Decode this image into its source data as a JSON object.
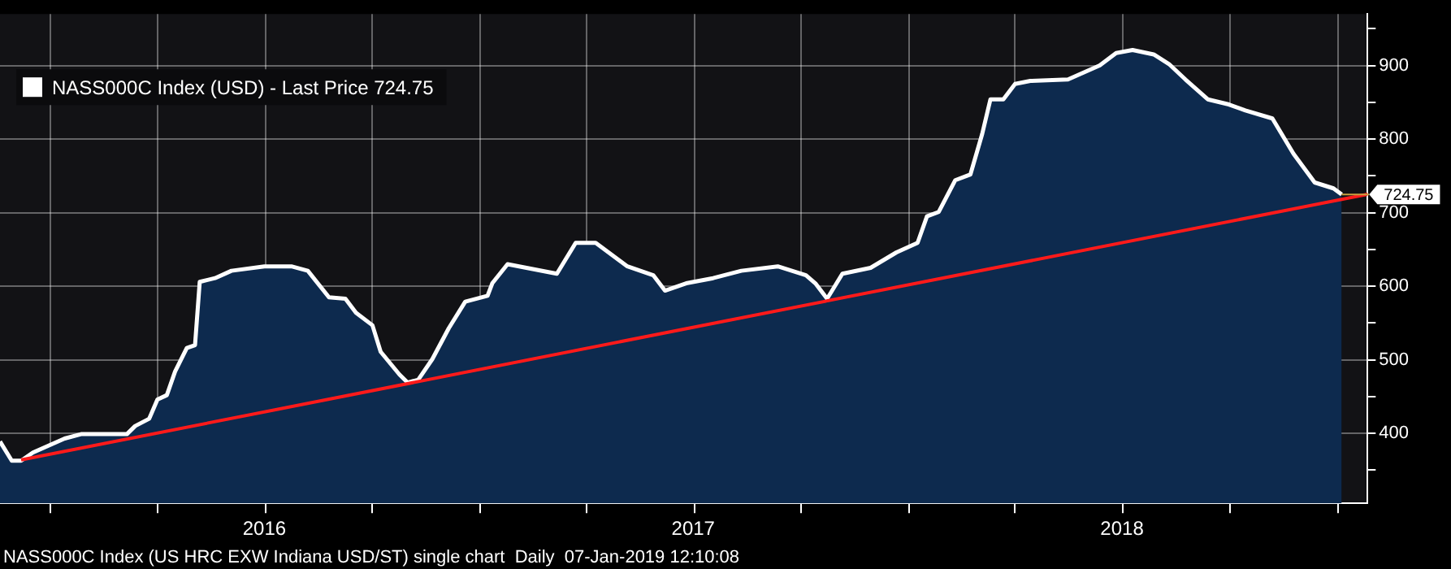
{
  "chart_data": {
    "type": "area",
    "xlim": [
      "2015-11-19",
      "2019-01-26"
    ],
    "ylim": [
      305,
      970
    ],
    "xticks": [
      {
        "value": "2016-01-01",
        "label": null
      },
      {
        "value": "2016-04-01",
        "label": null
      },
      {
        "value": "2016-07-01",
        "label": "2016"
      },
      {
        "value": "2016-07-02",
        "label": null
      },
      {
        "value": "2016-10-01",
        "label": null
      },
      {
        "value": "2017-01-01",
        "label": null
      },
      {
        "value": "2017-04-01",
        "label": null
      },
      {
        "value": "2017-07-01",
        "label": "2017"
      },
      {
        "value": "2017-07-02",
        "label": null
      },
      {
        "value": "2017-10-01",
        "label": null
      },
      {
        "value": "2018-01-01",
        "label": null
      },
      {
        "value": "2018-04-01",
        "label": null
      },
      {
        "value": "2018-07-01",
        "label": "2018"
      },
      {
        "value": "2018-07-02",
        "label": null
      },
      {
        "value": "2018-10-01",
        "label": null
      },
      {
        "value": "2019-01-01",
        "label": null
      }
    ],
    "yticks": [
      {
        "value": 350,
        "label": null
      },
      400,
      {
        "value": 450,
        "label": null
      },
      500,
      {
        "value": 550,
        "label": null
      },
      600,
      {
        "value": 650,
        "label": null
      },
      700,
      {
        "value": 750,
        "label": null
      },
      800,
      {
        "value": 850,
        "label": null
      },
      900,
      {
        "value": 950,
        "label": null
      }
    ],
    "grid": true,
    "legend": "top left",
    "series": [
      {
        "name": "NASS000C Index (USD) - Last Price 724.75",
        "color": "#ffffff",
        "x": [
          "2015-11-19",
          "2015-11-29",
          "2015-12-07",
          "2015-12-17",
          "2016-01-13",
          "2016-01-27",
          "2016-03-06",
          "2016-03-13",
          "2016-03-25",
          "2016-04-01",
          "2016-04-09",
          "2016-04-16",
          "2016-04-26",
          "2016-05-03",
          "2016-05-07",
          "2016-05-20",
          "2016-06-03",
          "2016-07-01",
          "2016-07-24",
          "2016-08-07",
          "2016-08-25",
          "2016-09-08",
          "2016-09-17",
          "2016-10-01",
          "2016-10-08",
          "2016-10-24",
          "2016-10-31",
          "2016-11-09",
          "2016-11-21",
          "2016-12-05",
          "2016-12-19",
          "2017-01-07",
          "2017-01-11",
          "2017-01-24",
          "2017-03-07",
          "2017-03-23",
          "2017-04-09",
          "2017-05-06",
          "2017-05-28",
          "2017-06-07",
          "2017-06-25",
          "2017-07-18",
          "2017-08-11",
          "2017-09-11",
          "2017-10-05",
          "2017-10-13",
          "2017-10-23",
          "2017-11-05",
          "2017-11-29",
          "2017-12-21",
          "2018-01-08",
          "2018-01-16",
          "2018-01-26",
          "2018-02-09",
          "2018-02-22",
          "2018-03-04",
          "2018-03-11",
          "2018-03-22",
          "2018-04-01",
          "2018-04-14",
          "2018-05-16",
          "2018-06-12",
          "2018-06-26",
          "2018-07-10",
          "2018-07-28",
          "2018-08-10",
          "2018-08-24",
          "2018-09-12",
          "2018-09-30",
          "2018-10-14",
          "2018-11-06",
          "2018-11-24",
          "2018-12-12",
          "2018-12-28",
          "2019-01-04"
        ],
        "values": [
          389,
          363,
          363,
          374,
          393,
          399,
          399,
          410,
          420,
          446,
          452,
          484,
          516,
          520,
          606,
          611,
          621,
          627,
          627,
          621,
          585,
          583,
          564,
          547,
          511,
          480,
          469,
          473,
          501,
          543,
          579,
          587,
          604,
          630,
          617,
          659,
          659,
          627,
          615,
          594,
          604,
          611,
          621,
          627,
          615,
          604,
          583,
          617,
          625,
          646,
          659,
          695,
          701,
          744,
          752,
          807,
          854,
          854,
          875,
          879,
          881,
          900,
          917,
          921,
          915,
          902,
          881,
          854,
          847,
          839,
          828,
          780,
          741,
          733,
          724.75
        ]
      },
      {
        "type": "line",
        "color": "#ff1a1a",
        "x": [
          "2015-12-07",
          "2019-01-26"
        ],
        "values": [
          364,
          725
        ]
      }
    ],
    "annotations": [
      {
        "text": "724.75",
        "x": "2019-01-04",
        "y": 724.75
      },
      "NASS000C Index (US HRC EXW Indiana USD/ST) single chart  Daily  07-Jan-2019 12:10:08"
    ]
  }
}
